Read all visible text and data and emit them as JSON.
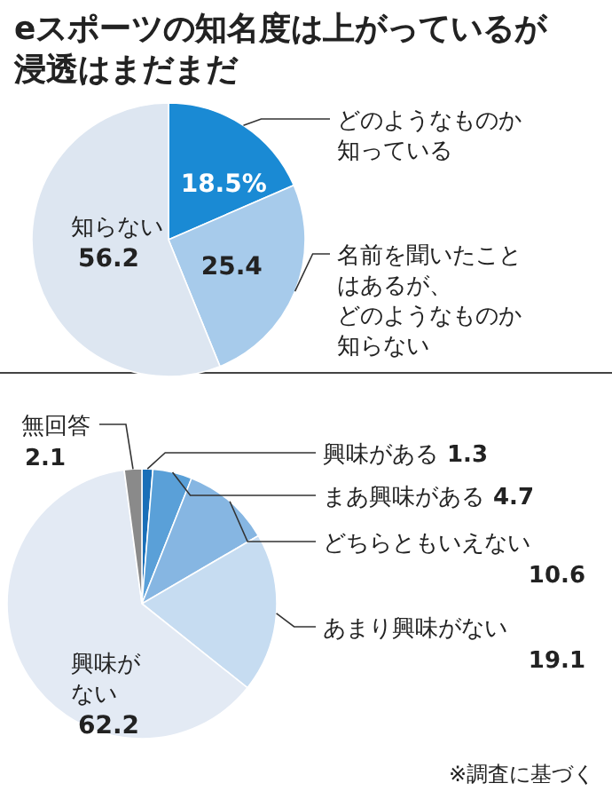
{
  "chart_data": [
    {
      "type": "pie",
      "title": "eスポーツの知名度は上がっているが浸透はまだまだ",
      "categories": [
        "どのようなものか知っている",
        "名前を聞いたことはあるが、どのようなものか知らない",
        "知らない"
      ],
      "values": [
        18.5,
        25.4,
        56.2
      ],
      "value_labels": [
        "18.5%",
        "25.4",
        "56.2"
      ],
      "colors": [
        "#1a8ad4",
        "#a7cbeb",
        "#dde6f1"
      ]
    },
    {
      "type": "pie",
      "categories": [
        "興味がある",
        "まあ興味がある",
        "どちらともいえない",
        "あまり興味がない",
        "興味がない",
        "無回答"
      ],
      "values": [
        1.3,
        4.7,
        10.6,
        19.1,
        62.2,
        2.1
      ],
      "value_labels": [
        "1.3",
        "4.7",
        "10.6",
        "19.1",
        "62.2",
        "2.1"
      ],
      "colors": [
        "#1a6fb8",
        "#5aa0d8",
        "#86b6e2",
        "#c6dcf1",
        "#e3eaf4",
        "#8a8a8a"
      ],
      "annotations": [
        "※調査に基づく"
      ]
    }
  ]
}
